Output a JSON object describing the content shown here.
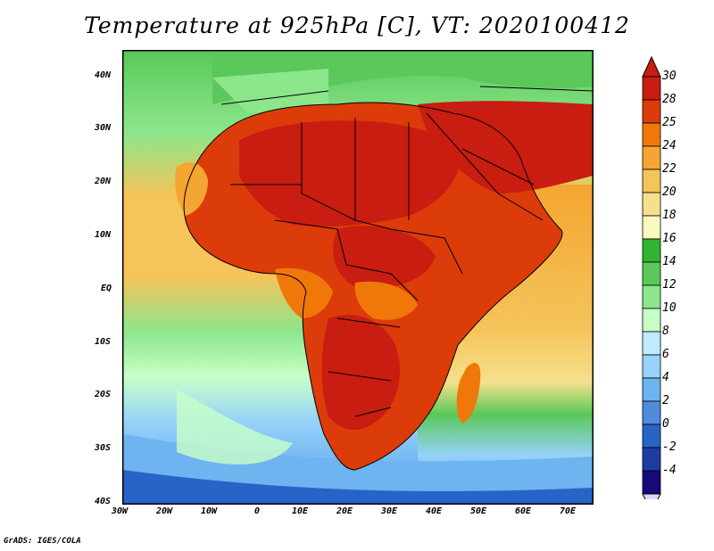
{
  "title": "Temperature at 925hPa [C], VT: 2020100412",
  "credit": "GrADS: IGES/COLA",
  "map": {
    "region": "Africa / Arabian Peninsula",
    "variable": "Temperature at 925hPa",
    "units": "C",
    "lon_range": [
      -30,
      75
    ],
    "lat_range": [
      -40,
      45
    ],
    "lat_labels": [
      "40N",
      "30N",
      "20N",
      "10N",
      "EQ",
      "10S",
      "20S",
      "30S",
      "40S"
    ],
    "lon_labels": [
      "30W",
      "20W",
      "10W",
      "0",
      "10E",
      "20E",
      "30E",
      "40E",
      "50E",
      "60E",
      "70E"
    ]
  },
  "colorbar": {
    "labels": [
      "30",
      "28",
      "25",
      "24",
      "22",
      "20",
      "18",
      "16",
      "14",
      "12",
      "10",
      "8",
      "6",
      "4",
      "2",
      "0",
      "-2",
      "-4"
    ],
    "colors": [
      "#c81d10",
      "#dc3c0a",
      "#f0780a",
      "#f5a531",
      "#f5c45a",
      "#f5e08c",
      "#fafabe",
      "#32b432",
      "#5ac85a",
      "#8ce68c",
      "#c8ffc8",
      "#beebff",
      "#96d2fa",
      "#6eb4f0",
      "#508cdc",
      "#2864c8",
      "#1e3ca0",
      "#140a78"
    ]
  }
}
